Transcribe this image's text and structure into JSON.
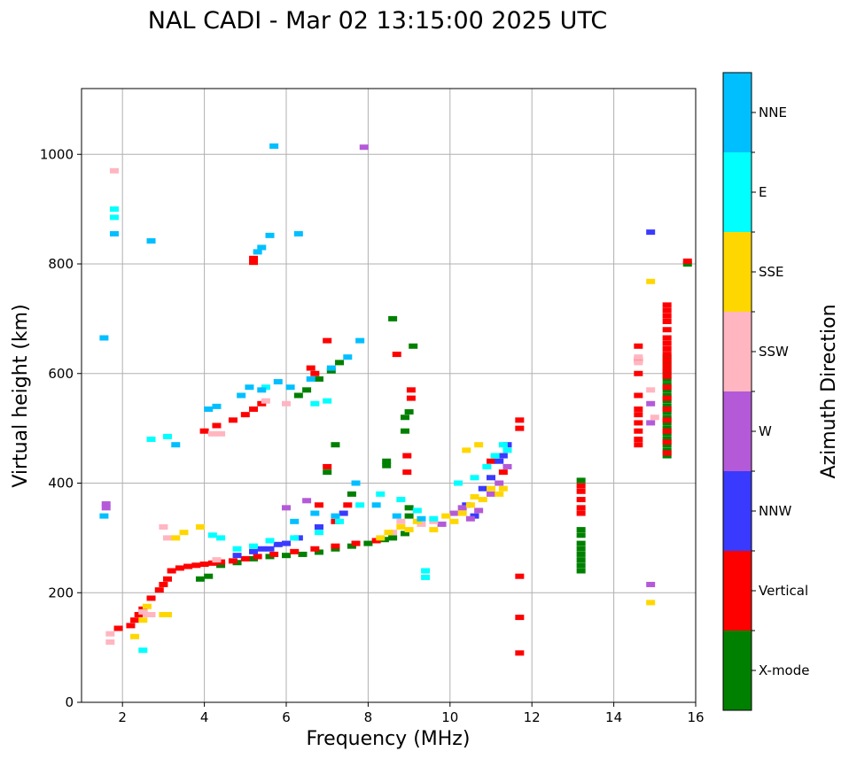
{
  "chart_data": {
    "type": "scatter",
    "title": "NAL CADI - Mar 02 13:15:00 2025 UTC",
    "xlabel": "Frequency (MHz)",
    "ylabel": "Virtual height (km)",
    "xlim": [
      1,
      16
    ],
    "ylim": [
      0,
      1120
    ],
    "xticks": [
      2,
      4,
      6,
      8,
      10,
      12,
      14,
      16
    ],
    "yticks": [
      0,
      200,
      400,
      600,
      800,
      1000
    ],
    "grid": true,
    "colorbar": {
      "label": "Azimuth Direction",
      "categories": [
        {
          "name": "X-mode",
          "color": "#008000"
        },
        {
          "name": "Vertical",
          "color": "#ff0000"
        },
        {
          "name": "NNW",
          "color": "#3a3aff"
        },
        {
          "name": "W",
          "color": "#b45ad8"
        },
        {
          "name": "SSW",
          "color": "#ffb6c1"
        },
        {
          "name": "SSE",
          "color": "#ffd700"
        },
        {
          "name": "E",
          "color": "#00ffff"
        },
        {
          "name": "NNE",
          "color": "#00bfff"
        }
      ]
    },
    "series": [
      {
        "name": "X-mode",
        "points": [
          [
            3.9,
            225
          ],
          [
            4.1,
            230
          ],
          [
            4.4,
            250
          ],
          [
            4.8,
            255
          ],
          [
            5.2,
            262
          ],
          [
            5.6,
            266
          ],
          [
            6.0,
            268
          ],
          [
            6.4,
            270
          ],
          [
            6.8,
            274
          ],
          [
            7.2,
            280
          ],
          [
            7.6,
            285
          ],
          [
            8.0,
            290
          ],
          [
            8.4,
            297
          ],
          [
            8.6,
            300
          ],
          [
            8.9,
            308
          ],
          [
            9.0,
            340
          ],
          [
            9.0,
            355
          ],
          [
            6.3,
            560
          ],
          [
            6.5,
            570
          ],
          [
            6.8,
            590
          ],
          [
            7.1,
            605
          ],
          [
            7.3,
            620
          ],
          [
            8.6,
            700
          ],
          [
            9.1,
            650
          ],
          [
            8.9,
            520
          ],
          [
            8.9,
            495
          ],
          [
            8.45,
            440
          ],
          [
            8.45,
            432
          ],
          [
            9.0,
            530
          ],
          [
            7.2,
            470
          ],
          [
            7.0,
            420
          ],
          [
            7.6,
            380
          ],
          [
            13.2,
            405
          ],
          [
            13.2,
            315
          ],
          [
            13.2,
            305
          ],
          [
            13.2,
            290
          ],
          [
            13.2,
            280
          ],
          [
            13.2,
            270
          ],
          [
            13.2,
            260
          ],
          [
            13.2,
            250
          ],
          [
            13.2,
            240
          ],
          [
            15.3,
            630
          ],
          [
            15.3,
            620
          ],
          [
            15.3,
            610
          ],
          [
            15.3,
            600
          ],
          [
            15.3,
            590
          ],
          [
            15.3,
            580
          ],
          [
            15.3,
            570
          ],
          [
            15.3,
            560
          ],
          [
            15.3,
            550
          ],
          [
            15.3,
            540
          ],
          [
            15.3,
            530
          ],
          [
            15.3,
            520
          ],
          [
            15.3,
            510
          ],
          [
            15.3,
            500
          ],
          [
            15.3,
            490
          ],
          [
            15.3,
            480
          ],
          [
            15.3,
            470
          ],
          [
            15.3,
            460
          ],
          [
            15.3,
            450
          ],
          [
            15.8,
            800
          ]
        ]
      },
      {
        "name": "Vertical",
        "points": [
          [
            1.9,
            135
          ],
          [
            2.2,
            140
          ],
          [
            2.3,
            150
          ],
          [
            2.4,
            160
          ],
          [
            2.5,
            170
          ],
          [
            2.7,
            190
          ],
          [
            2.9,
            205
          ],
          [
            3.0,
            215
          ],
          [
            3.1,
            225
          ],
          [
            3.2,
            240
          ],
          [
            3.4,
            245
          ],
          [
            3.6,
            248
          ],
          [
            3.8,
            250
          ],
          [
            4.0,
            252
          ],
          [
            4.2,
            254
          ],
          [
            4.4,
            256
          ],
          [
            4.7,
            258
          ],
          [
            5.0,
            262
          ],
          [
            5.3,
            266
          ],
          [
            5.7,
            270
          ],
          [
            6.2,
            275
          ],
          [
            6.7,
            280
          ],
          [
            7.2,
            285
          ],
          [
            7.7,
            290
          ],
          [
            8.2,
            295
          ],
          [
            4.0,
            495
          ],
          [
            4.3,
            505
          ],
          [
            4.7,
            515
          ],
          [
            5.0,
            525
          ],
          [
            5.2,
            535
          ],
          [
            5.4,
            545
          ],
          [
            5.2,
            810
          ],
          [
            5.2,
            803
          ],
          [
            6.7,
            600
          ],
          [
            6.6,
            610
          ],
          [
            7.0,
            660
          ],
          [
            8.7,
            635
          ],
          [
            9.05,
            570
          ],
          [
            9.05,
            555
          ],
          [
            8.95,
            450
          ],
          [
            8.95,
            420
          ],
          [
            7.0,
            430
          ],
          [
            6.8,
            360
          ],
          [
            7.2,
            330
          ],
          [
            7.5,
            360
          ],
          [
            11.0,
            440
          ],
          [
            11.3,
            420
          ],
          [
            11.7,
            515
          ],
          [
            11.7,
            500
          ],
          [
            11.7,
            230
          ],
          [
            11.7,
            155
          ],
          [
            11.7,
            90
          ],
          [
            13.2,
            395
          ],
          [
            13.2,
            385
          ],
          [
            13.2,
            370
          ],
          [
            13.2,
            355
          ],
          [
            13.2,
            345
          ],
          [
            14.6,
            650
          ],
          [
            14.6,
            625
          ],
          [
            14.6,
            600
          ],
          [
            14.6,
            560
          ],
          [
            14.6,
            535
          ],
          [
            14.6,
            525
          ],
          [
            14.6,
            510
          ],
          [
            14.6,
            495
          ],
          [
            14.6,
            480
          ],
          [
            14.6,
            470
          ],
          [
            15.3,
            725
          ],
          [
            15.3,
            715
          ],
          [
            15.3,
            705
          ],
          [
            15.3,
            695
          ],
          [
            15.3,
            680
          ],
          [
            15.3,
            665
          ],
          [
            15.3,
            655
          ],
          [
            15.3,
            645
          ],
          [
            15.3,
            635
          ],
          [
            15.3,
            625
          ],
          [
            15.3,
            615
          ],
          [
            15.3,
            605
          ],
          [
            15.3,
            595
          ],
          [
            15.3,
            575
          ],
          [
            15.3,
            555
          ],
          [
            15.3,
            535
          ],
          [
            15.3,
            515
          ],
          [
            15.3,
            495
          ],
          [
            15.3,
            475
          ],
          [
            15.3,
            455
          ],
          [
            15.8,
            805
          ]
        ]
      },
      {
        "name": "NNW",
        "points": [
          [
            4.8,
            268
          ],
          [
            5.2,
            275
          ],
          [
            5.6,
            280
          ],
          [
            6.0,
            290
          ],
          [
            6.3,
            300
          ],
          [
            6.8,
            320
          ],
          [
            7.4,
            345
          ],
          [
            10.4,
            360
          ],
          [
            10.6,
            340
          ],
          [
            10.8,
            390
          ],
          [
            11.0,
            410
          ],
          [
            11.3,
            450
          ],
          [
            11.4,
            470
          ],
          [
            11.2,
            440
          ],
          [
            14.9,
            858
          ],
          [
            5.4,
            280
          ],
          [
            5.8,
            288
          ]
        ]
      },
      {
        "name": "W",
        "points": [
          [
            1.6,
            355
          ],
          [
            1.6,
            362
          ],
          [
            7.9,
            1013
          ],
          [
            9.8,
            325
          ],
          [
            10.1,
            345
          ],
          [
            10.3,
            355
          ],
          [
            10.5,
            335
          ],
          [
            10.7,
            350
          ],
          [
            11.0,
            380
          ],
          [
            11.2,
            400
          ],
          [
            11.4,
            430
          ],
          [
            14.9,
            510
          ],
          [
            14.9,
            545
          ],
          [
            14.9,
            215
          ],
          [
            6.0,
            355
          ],
          [
            6.5,
            368
          ]
        ]
      },
      {
        "name": "SSW",
        "points": [
          [
            1.8,
            970
          ],
          [
            1.7,
            125
          ],
          [
            1.7,
            110
          ],
          [
            2.5,
            165
          ],
          [
            2.6,
            160
          ],
          [
            2.7,
            160
          ],
          [
            3.0,
            320
          ],
          [
            3.1,
            300
          ],
          [
            4.3,
            260
          ],
          [
            4.2,
            490
          ],
          [
            4.4,
            490
          ],
          [
            5.5,
            550
          ],
          [
            6.0,
            545
          ],
          [
            8.8,
            330
          ],
          [
            8.6,
            310
          ],
          [
            9.3,
            325
          ],
          [
            9.6,
            330
          ],
          [
            14.6,
            630
          ],
          [
            14.6,
            620
          ],
          [
            14.9,
            570
          ],
          [
            15.0,
            520
          ]
        ]
      },
      {
        "name": "SSE",
        "points": [
          [
            2.3,
            120
          ],
          [
            2.5,
            150
          ],
          [
            2.6,
            175
          ],
          [
            3.0,
            160
          ],
          [
            3.1,
            160
          ],
          [
            3.3,
            300
          ],
          [
            3.5,
            310
          ],
          [
            3.9,
            320
          ],
          [
            8.3,
            300
          ],
          [
            8.5,
            310
          ],
          [
            8.8,
            320
          ],
          [
            9.0,
            315
          ],
          [
            9.2,
            330
          ],
          [
            9.6,
            315
          ],
          [
            9.9,
            340
          ],
          [
            10.1,
            330
          ],
          [
            10.3,
            345
          ],
          [
            10.5,
            360
          ],
          [
            10.6,
            375
          ],
          [
            10.8,
            370
          ],
          [
            11.0,
            390
          ],
          [
            11.2,
            380
          ],
          [
            11.3,
            390
          ],
          [
            10.4,
            460
          ],
          [
            10.7,
            470
          ],
          [
            14.9,
            768
          ],
          [
            14.9,
            182
          ]
        ]
      },
      {
        "name": "E",
        "points": [
          [
            1.8,
            900
          ],
          [
            1.8,
            885
          ],
          [
            2.5,
            95
          ],
          [
            4.2,
            305
          ],
          [
            4.4,
            300
          ],
          [
            4.8,
            280
          ],
          [
            5.2,
            285
          ],
          [
            5.6,
            295
          ],
          [
            6.2,
            300
          ],
          [
            6.8,
            310
          ],
          [
            7.3,
            330
          ],
          [
            7.8,
            360
          ],
          [
            8.3,
            380
          ],
          [
            8.8,
            370
          ],
          [
            9.2,
            350
          ],
          [
            9.4,
            240
          ],
          [
            9.4,
            228
          ],
          [
            9.6,
            335
          ],
          [
            10.2,
            400
          ],
          [
            10.6,
            410
          ],
          [
            10.9,
            430
          ],
          [
            11.1,
            450
          ],
          [
            11.3,
            470
          ],
          [
            11.4,
            460
          ],
          [
            2.7,
            480
          ],
          [
            3.1,
            485
          ],
          [
            5.5,
            575
          ],
          [
            6.7,
            545
          ],
          [
            7.0,
            550
          ]
        ]
      },
      {
        "name": "NNE",
        "points": [
          [
            1.8,
            855
          ],
          [
            1.55,
            665
          ],
          [
            2.7,
            842
          ],
          [
            5.7,
            1015
          ],
          [
            6.3,
            855
          ],
          [
            5.3,
            822
          ],
          [
            5.4,
            830
          ],
          [
            5.6,
            852
          ],
          [
            4.1,
            535
          ],
          [
            4.3,
            540
          ],
          [
            4.9,
            560
          ],
          [
            5.1,
            575
          ],
          [
            5.4,
            570
          ],
          [
            5.8,
            585
          ],
          [
            6.1,
            575
          ],
          [
            6.6,
            590
          ],
          [
            7.1,
            610
          ],
          [
            7.5,
            630
          ],
          [
            7.8,
            660
          ],
          [
            6.2,
            330
          ],
          [
            6.7,
            345
          ],
          [
            7.2,
            340
          ],
          [
            7.7,
            400
          ],
          [
            8.2,
            360
          ],
          [
            8.7,
            340
          ],
          [
            9.3,
            335
          ],
          [
            3.3,
            470
          ],
          [
            1.55,
            340
          ]
        ]
      }
    ]
  }
}
